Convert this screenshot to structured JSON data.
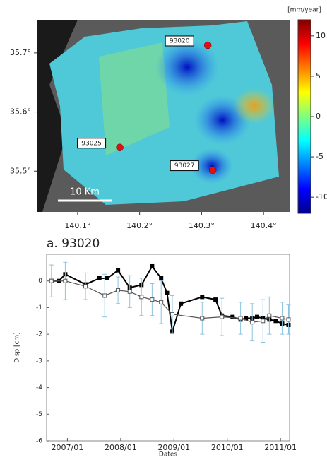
{
  "chart_data": [
    {
      "type": "map",
      "colorbar_label": "[mm/year]",
      "scale_label": "10 Km",
      "xlim": [
        140.034,
        140.442
      ],
      "ylim": [
        35.431,
        35.756
      ],
      "xticks": [
        {
          "value": 140.1,
          "label": "140.1°"
        },
        {
          "value": 140.2,
          "label": "140.2°"
        },
        {
          "value": 140.3,
          "label": "140.3°"
        },
        {
          "value": 140.4,
          "label": "140.4°"
        }
      ],
      "yticks": [
        {
          "value": 35.5,
          "label": "35.5°"
        },
        {
          "value": 35.6,
          "label": "35.6°"
        },
        {
          "value": 35.7,
          "label": "35.7°"
        }
      ],
      "clim": [
        -12,
        12
      ],
      "cticks": [
        10,
        5,
        0,
        -5,
        -10
      ],
      "colormap": "jet",
      "points": [
        {
          "label": "93020",
          "lon": 140.31,
          "lat": 35.713
        },
        {
          "label": "93025",
          "lon": 140.168,
          "lat": 35.54
        },
        {
          "label": "93027",
          "lon": 140.318,
          "lat": 35.502
        }
      ],
      "point_color": "#e01010"
    },
    {
      "type": "line",
      "title": "a. 93020",
      "xlabel": "Dates",
      "ylabel": "Disp [cm]",
      "xlim": [
        2006.61,
        2011.17
      ],
      "ylim": [
        -6,
        1
      ],
      "xticks": [
        {
          "value": 2007,
          "label": "2007/01"
        },
        {
          "value": 2008,
          "label": "2008/01"
        },
        {
          "value": 2009,
          "label": "2009/01"
        },
        {
          "value": 2010,
          "label": "2010/01"
        },
        {
          "value": 2011,
          "label": "2011/01"
        }
      ],
      "yticks": [
        0,
        -1,
        -2,
        -3,
        -4,
        -5,
        -6
      ],
      "series": [
        {
          "marker": "filled",
          "color": "#000000",
          "x": [
            2006.7,
            2006.84,
            2006.96,
            2007.34,
            2007.6,
            2007.75,
            2007.95,
            2008.17,
            2008.39,
            2008.59,
            2008.76,
            2008.87,
            2008.97,
            2009.13,
            2009.53,
            2009.78,
            2009.9,
            2010.1,
            2010.25,
            2010.35,
            2010.47,
            2010.56,
            2010.67,
            2010.79,
            2010.91,
            2011.03,
            2011.15
          ],
          "values": [
            0,
            0,
            0.25,
            -0.13,
            0.1,
            0.1,
            0.4,
            -0.25,
            -0.15,
            0.55,
            0.1,
            -0.45,
            -1.9,
            -0.85,
            -0.6,
            -0.7,
            -1.3,
            -1.35,
            -1.45,
            -1.4,
            -1.4,
            -1.35,
            -1.4,
            -1.45,
            -1.5,
            -1.6,
            -1.65
          ]
        },
        {
          "marker": "hollow",
          "color": "#555555",
          "error_color": "#8cc4e0",
          "x": [
            2006.7,
            2006.96,
            2007.34,
            2007.7,
            2007.95,
            2008.17,
            2008.39,
            2008.59,
            2008.76,
            2008.97,
            2009.53,
            2009.9,
            2010.25,
            2010.47,
            2010.67,
            2010.79,
            2011.03,
            2011.15
          ],
          "values": [
            0,
            0,
            -0.2,
            -0.55,
            -0.35,
            -0.4,
            -0.6,
            -0.7,
            -0.8,
            -1.25,
            -1.4,
            -1.35,
            -1.4,
            -1.55,
            -1.5,
            -1.3,
            -1.4,
            -1.45
          ],
          "errors": [
            0.6,
            0.7,
            0.5,
            0.8,
            0.5,
            0.6,
            0.7,
            0.6,
            0.8,
            0.7,
            0.6,
            0.7,
            0.6,
            0.7,
            0.8,
            0.7,
            0.6,
            0.55
          ]
        }
      ]
    }
  ]
}
